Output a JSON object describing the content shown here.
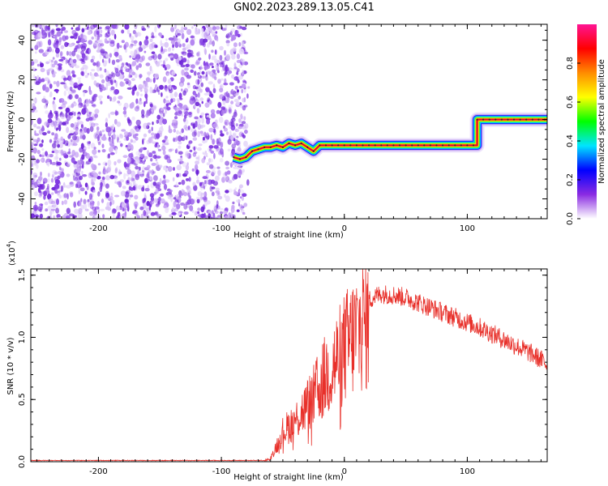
{
  "title": "GN02.2023.289.13.05.C41",
  "chart_data": [
    {
      "type": "heatmap",
      "xlabel": "Height of straight line (km)",
      "ylabel": "Frequency (Hz)",
      "xlim": [
        -255,
        165
      ],
      "ylim": [
        -50,
        48
      ],
      "xticks": [
        -200,
        -100,
        0,
        100
      ],
      "yticks": [
        -40,
        -20,
        0,
        20,
        40
      ],
      "noise_region": {
        "x": [
          -255,
          -80
        ],
        "y": [
          -50,
          48
        ]
      },
      "track": [
        {
          "x": -90,
          "y": -19
        },
        {
          "x": -85,
          "y": -20
        },
        {
          "x": -80,
          "y": -19
        },
        {
          "x": -75,
          "y": -16
        },
        {
          "x": -70,
          "y": -15
        },
        {
          "x": -65,
          "y": -14
        },
        {
          "x": -60,
          "y": -14
        },
        {
          "x": -55,
          "y": -13
        },
        {
          "x": -50,
          "y": -14
        },
        {
          "x": -45,
          "y": -12
        },
        {
          "x": -40,
          "y": -13
        },
        {
          "x": -35,
          "y": -12
        },
        {
          "x": -30,
          "y": -14
        },
        {
          "x": -25,
          "y": -16
        },
        {
          "x": -20,
          "y": -13
        },
        {
          "x": -15,
          "y": -13
        },
        {
          "x": 0,
          "y": -13
        },
        {
          "x": 50,
          "y": -13
        },
        {
          "x": 108,
          "y": -13
        },
        {
          "x": 108,
          "y": 0
        },
        {
          "x": 165,
          "y": 0
        }
      ],
      "colorbar": {
        "label": "Normalized spectral amplitude",
        "range": [
          0,
          1
        ],
        "ticks": [
          "0.0",
          "0.2",
          "0.4",
          "0.6",
          "0.8"
        ],
        "colors": [
          "#ffffff",
          "#8a2be2",
          "#0000ff",
          "#00e5ff",
          "#00ff00",
          "#ffff00",
          "#ff8c00",
          "#ff0000",
          "#ff1493"
        ]
      }
    },
    {
      "type": "line",
      "xlabel": "Height of straight line (km)",
      "ylabel": "SNR (10 * v/v)",
      "exponent_label": "(x10",
      "exponent": "4",
      "xlim": [
        -255,
        165
      ],
      "ylim": [
        0,
        1.55
      ],
      "xticks": [
        -200,
        -100,
        0,
        100
      ],
      "yticks": [
        "0.0",
        "0.5",
        "1.0",
        "1.5"
      ],
      "color": "#e8302a",
      "envelope": {
        "x": [
          -255,
          -65,
          -60,
          -55,
          -50,
          -45,
          -40,
          -35,
          -30,
          -25,
          -20,
          -15,
          -10,
          -5,
          0,
          5,
          10,
          15,
          20,
          25,
          30,
          40,
          50,
          60,
          70,
          80,
          90,
          100,
          110,
          120,
          130,
          140,
          150,
          160,
          165
        ],
        "y": [
          0.01,
          0.01,
          0.03,
          0.15,
          0.28,
          0.33,
          0.38,
          0.45,
          0.52,
          0.6,
          0.7,
          0.8,
          0.88,
          0.95,
          1.05,
          1.12,
          1.2,
          1.27,
          1.3,
          1.33,
          1.35,
          1.34,
          1.32,
          1.28,
          1.24,
          1.2,
          1.16,
          1.12,
          1.08,
          1.03,
          0.98,
          0.93,
          0.88,
          0.82,
          0.78
        ]
      }
    }
  ]
}
